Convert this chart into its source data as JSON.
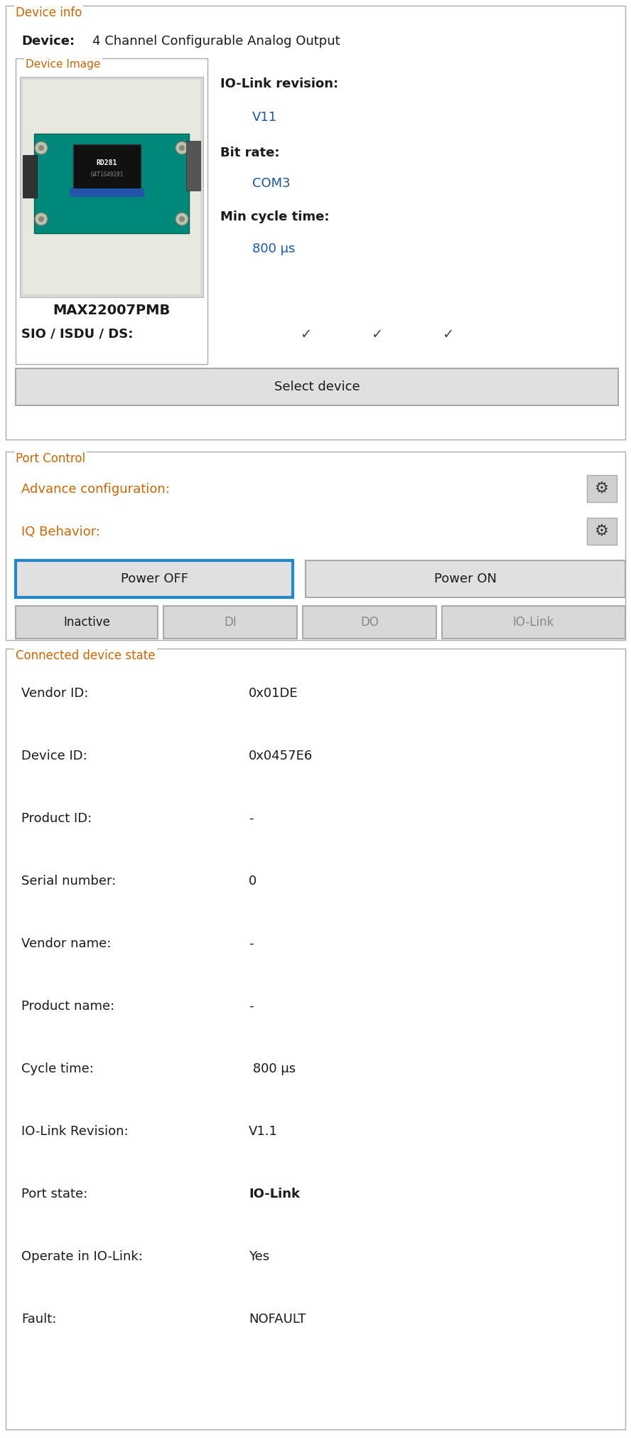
{
  "fig_width": 8.88,
  "fig_height": 20.22,
  "bg_color": "#ffffff",
  "border_color": "#aaaaaa",
  "text_dark": "#1a1a1a",
  "text_blue": "#1a56cc",
  "text_orange": "#cc6600",
  "text_teal_label": "#cc6600",
  "btn_bg": "#e0e0e0",
  "btn_border": "#aaaaaa",
  "gear_bg": "#d0d0d0",
  "power_off_border": "#3388dd",
  "section_label_color": "#cc6600",
  "device_info_label": "Device info",
  "device_label": "Device:",
  "device_value": "4 Channel Configurable Analog Output",
  "device_image_label": "Device Image",
  "io_link_rev_label": "IO-Link revision:",
  "io_link_rev_value": "V11",
  "bit_rate_label": "Bit rate:",
  "bit_rate_value": "COM3",
  "min_cycle_label": "Min cycle time:",
  "min_cycle_value": "800 μs",
  "sio_label": "SIO / ISDU / DS:",
  "select_device_label": "Select device",
  "port_control_label": "Port Control",
  "adv_config_label": "Advance configuration:",
  "iq_behavior_label": "IQ Behavior:",
  "power_off_label": "Power OFF",
  "power_on_label": "Power ON",
  "inactive_label": "Inactive",
  "di_label": "DI",
  "do_label": "DO",
  "io_link_btn_label": "IO-Link",
  "connected_state_label": "Connected device state",
  "fields": [
    [
      "Vendor ID:",
      "0x01DE",
      false
    ],
    [
      "Device ID:",
      "0x0457E6",
      false
    ],
    [
      "Product ID:",
      "-",
      false
    ],
    [
      "Serial number:",
      "0",
      false
    ],
    [
      "Vendor name:",
      "-",
      false
    ],
    [
      "Product name:",
      "-",
      false
    ],
    [
      "Cycle time:",
      " 800 μs",
      false
    ],
    [
      "IO-Link Revision:",
      "V1.1",
      false
    ],
    [
      "Port state:",
      "IO-Link",
      true
    ],
    [
      "Operate in IO-Link:",
      "Yes",
      false
    ],
    [
      "Fault:",
      "NOFAULT",
      false
    ]
  ]
}
